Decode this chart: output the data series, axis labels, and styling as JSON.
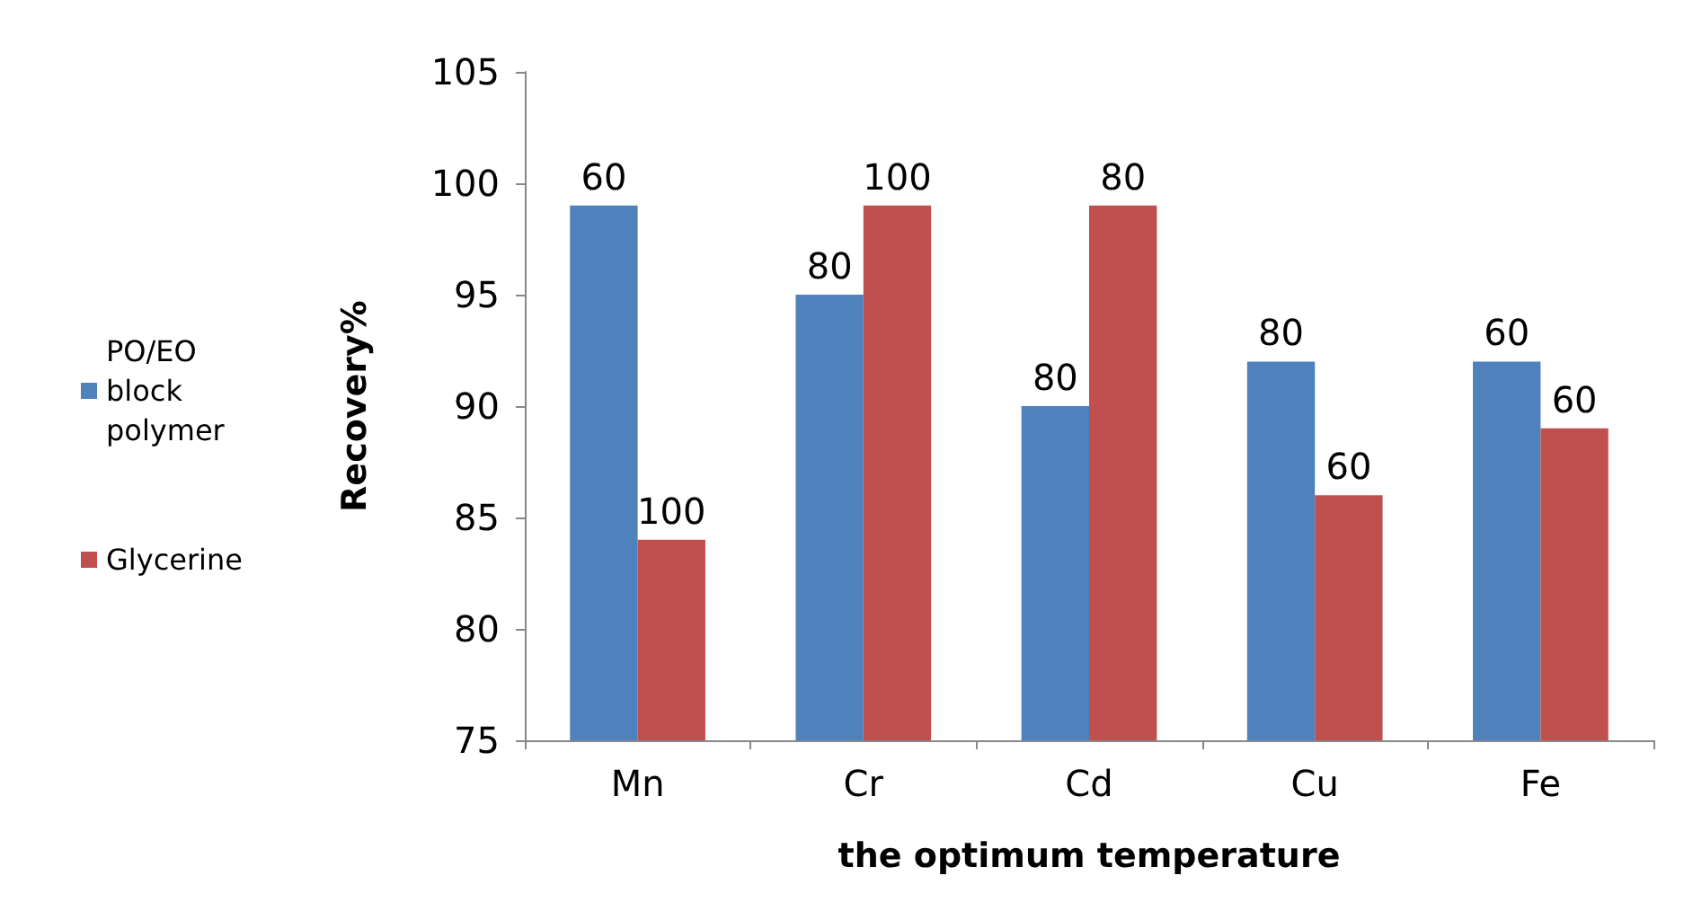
{
  "chart_data": {
    "type": "bar",
    "xlabel": "the optimum temperature",
    "ylabel": "Recovery%",
    "categories": [
      "Mn",
      "Cr",
      "Cd",
      "Cu",
      "Fe"
    ],
    "series": [
      {
        "name": "PO/EO block polymer",
        "color": "#4f81bd",
        "values": [
          99,
          95,
          90,
          92,
          92
        ]
      },
      {
        "name": "Glycerine",
        "color": "#c0504d",
        "values": [
          84,
          99,
          99,
          86,
          89
        ]
      }
    ],
    "annotations": [
      {
        "text": "60",
        "x": "Mn",
        "y": 99
      },
      {
        "text": "100",
        "x": "Mn",
        "y": 84
      },
      {
        "text": "80",
        "x": "Cr",
        "y": 95
      },
      {
        "text": "100",
        "x": "Cr",
        "y": 99
      },
      {
        "text": "80",
        "x": "Cd",
        "y": 90
      },
      {
        "text": "80",
        "x": "Cd",
        "y": 99
      },
      {
        "text": "80",
        "x": "Cu",
        "y": 92
      },
      {
        "text": "60",
        "x": "Cu",
        "y": 86
      },
      {
        "text": "60",
        "x": "Fe",
        "y": 92
      },
      {
        "text": "60",
        "x": "Fe",
        "y": 89
      }
    ],
    "ylim": [
      75,
      105
    ],
    "yticks": [
      75,
      80,
      85,
      90,
      95,
      100,
      105
    ],
    "grid": false,
    "legend": "left"
  }
}
